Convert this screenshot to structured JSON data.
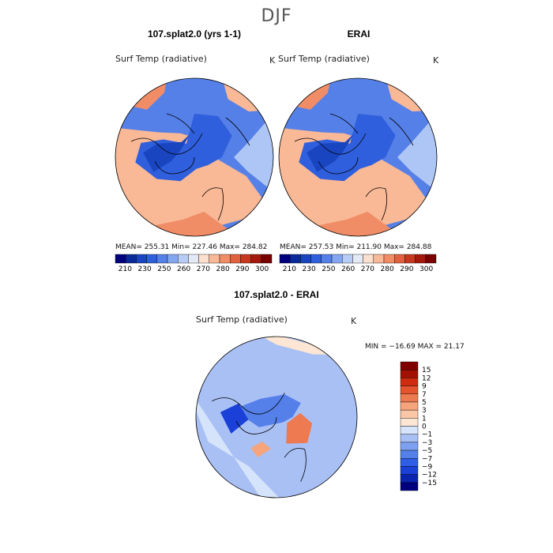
{
  "season": "DJF",
  "colors": {
    "abs_palette": [
      "#00007f",
      "#0a2a9a",
      "#1a45c0",
      "#2f5fdc",
      "#5580e8",
      "#84a6f0",
      "#b8cdf6",
      "#e3eaf6",
      "#fce0cf",
      "#f9b896",
      "#f08d66",
      "#e0613f",
      "#c6391f",
      "#a5180e",
      "#7a0000"
    ],
    "diff_palette": [
      "#00007f",
      "#0a24b0",
      "#1a40d8",
      "#2f5ee6",
      "#5580ea",
      "#7ea0f0",
      "#a9c0f5",
      "#d5e3fb",
      "#fde6d3",
      "#f9c7a5",
      "#f5a47c",
      "#ee7a52",
      "#e5542f",
      "#cf2b10",
      "#a31004",
      "#800000"
    ],
    "coast": "#000000",
    "ocean_abs": "#2f5fdc"
  },
  "panels": [
    {
      "title": "107.splat2.0 (yrs 1-1)",
      "variable": "Surf Temp (radiative)",
      "units": "K",
      "stats": "MEAN= 255.31    Min= 227.46    Max= 284.82"
    },
    {
      "title": "ERAI",
      "variable": "Surf Temp (radiative)",
      "units": "K",
      "stats": "MEAN= 257.53    Min= 211.90    Max= 284.88"
    },
    {
      "title": "107.splat2.0 - ERAI",
      "variable": "Surf Temp (radiative)",
      "units": "K",
      "stats": "MIN = −16.69  MAX =   21.17"
    }
  ],
  "chart_data": [
    {
      "type": "heatmap",
      "projection": "north polar stereographic",
      "title": "107.splat2.0 (yrs 1-1)",
      "variable": "Surf Temp (radiative)",
      "units": "K",
      "mean": 255.31,
      "min": 227.46,
      "max": 284.82,
      "colorbar_ticks": [
        "210",
        "230",
        "250",
        "260",
        "270",
        "280",
        "290",
        "300"
      ]
    },
    {
      "type": "heatmap",
      "projection": "north polar stereographic",
      "title": "ERAI",
      "variable": "Surf Temp (radiative)",
      "units": "K",
      "mean": 257.53,
      "min": 211.9,
      "max": 284.88,
      "colorbar_ticks": [
        "210",
        "230",
        "250",
        "260",
        "270",
        "280",
        "290",
        "300"
      ]
    },
    {
      "type": "heatmap",
      "projection": "north polar stereographic",
      "title": "107.splat2.0 - ERAI",
      "variable": "Surf Temp (radiative)",
      "units": "K",
      "min": -16.69,
      "max": 21.17,
      "colorbar_ticks": [
        "15",
        "12",
        "9",
        "7",
        "5",
        "3",
        "1",
        "0",
        "−1",
        "−3",
        "−5",
        "−7",
        "−9",
        "−12",
        "−15"
      ]
    }
  ]
}
